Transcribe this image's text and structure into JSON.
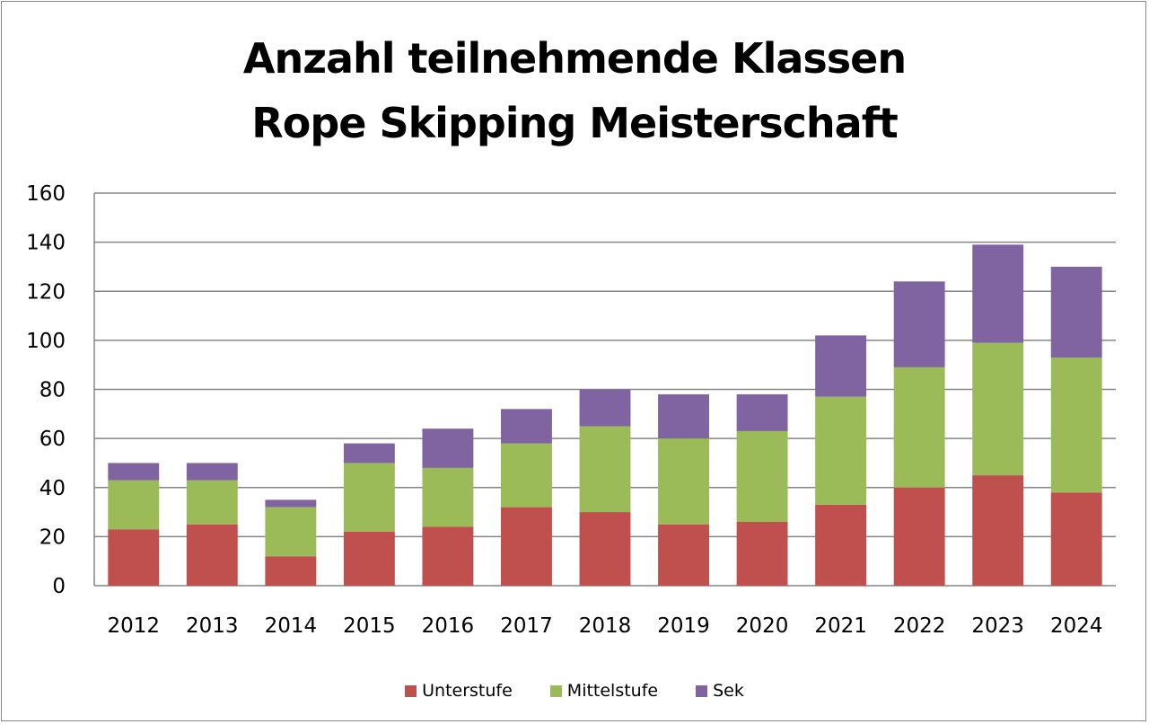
{
  "chart_data": {
    "type": "bar",
    "stacked": true,
    "title": [
      "Anzahl teilnehmende Klassen",
      "Rope Skipping Meisterschaft"
    ],
    "xlabel": "",
    "ylabel": "",
    "ylim": [
      0,
      160
    ],
    "yticks": [
      0,
      20,
      40,
      60,
      80,
      100,
      120,
      140,
      160
    ],
    "grid": true,
    "legend_position": "bottom",
    "categories": [
      "2012",
      "2013",
      "2014",
      "2015",
      "2016",
      "2017",
      "2018",
      "2019",
      "2020",
      "2021",
      "2022",
      "2023",
      "2024"
    ],
    "series": [
      {
        "name": "Unterstufe",
        "color": "#c0504d",
        "values": [
          23,
          25,
          12,
          22,
          24,
          32,
          30,
          25,
          26,
          33,
          40,
          45,
          38
        ]
      },
      {
        "name": "Mittelstufe",
        "color": "#9bbb59",
        "values": [
          20,
          18,
          20,
          28,
          24,
          26,
          35,
          35,
          37,
          44,
          49,
          54,
          55
        ]
      },
      {
        "name": "Sek",
        "color": "#8064a2",
        "values": [
          7,
          7,
          3,
          8,
          16,
          14,
          15,
          18,
          15,
          25,
          35,
          40,
          37
        ]
      }
    ]
  }
}
